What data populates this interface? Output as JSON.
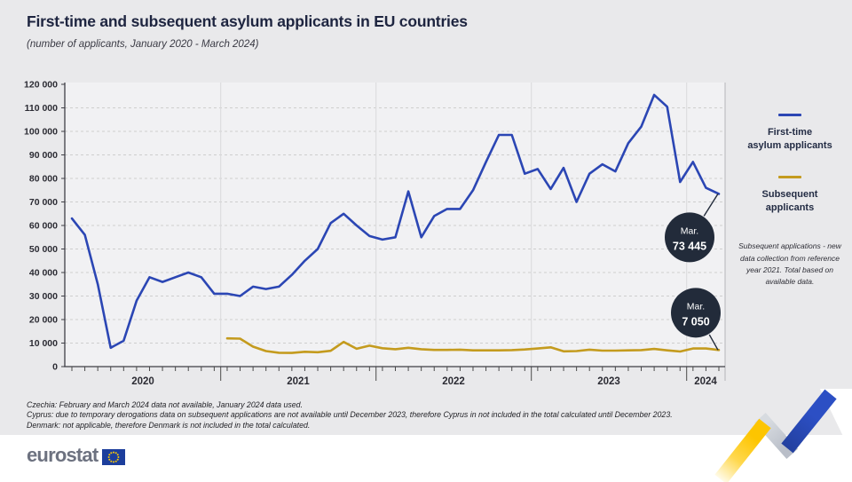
{
  "header": {
    "title": "First-time and subsequent asylum applicants in EU countries",
    "subtitle": "(number of applicants, January 2020 - March 2024)"
  },
  "legend": {
    "items": [
      {
        "line1": "First-time",
        "line2": "asylum applicants",
        "color": "#2b46b4"
      },
      {
        "line1": "Subsequent",
        "line2": "applicants",
        "color": "#c49b1e"
      }
    ],
    "note": "Subsequent applications - new data collection from reference year 2021. Total based on available data."
  },
  "footnotes": [
    "Czechia: February and March 2024 data not available, January 2024 data used.",
    "Cyprus: due to temporary derogations data on subsequent applications are not available until December 2023, therefore Cyprus in not included in the total calculated until December 2023.",
    "Denmark: not applicable, therefore Denmark is not included in the total calculated."
  ],
  "footer": {
    "logo_text": "eurostat"
  },
  "colors": {
    "background": "#e9e9eb",
    "plot_background": "#f1f1f3",
    "first_time_line": "#2b46b4",
    "subsequent_line": "#c49b1e",
    "callout_circle": "#222b3a",
    "footer_background": "#ffffff",
    "ribbon_yellow": "#fdc500",
    "ribbon_gray": "#c6cbd2",
    "ribbon_blue": "#2c4fc4",
    "eu_flag_blue": "#1c3e9c",
    "eu_flag_stars": "#ffcc00"
  },
  "chart_data": {
    "type": "line",
    "title": "First-time and subsequent asylum applicants in EU countries",
    "subtitle": "(number of applicants, January 2020 - March 2024)",
    "x_period": "January 2020 - March 2024",
    "grid": "horizontal-dashed",
    "legend_position": "right",
    "ylim": [
      0,
      120000
    ],
    "ytick_step": 10000,
    "ytick_labels": [
      "0",
      "10 000",
      "20 000",
      "30 000",
      "40 000",
      "50 000",
      "60 000",
      "70 000",
      "80 000",
      "90 000",
      "100 000",
      "110 000",
      "120 000"
    ],
    "year_labels": [
      "2020",
      "2021",
      "2022",
      "2023",
      "2024"
    ],
    "series": [
      {
        "name": "First-time asylum applicants",
        "color": "#2b46b4",
        "start": "2020-01",
        "offset_months": 0,
        "values": [
          63000,
          56000,
          35000,
          8000,
          11000,
          28000,
          38000,
          36000,
          38000,
          40000,
          38000,
          31000,
          31000,
          30000,
          34000,
          33000,
          34000,
          39000,
          45000,
          50000,
          61000,
          65000,
          60000,
          55500,
          54000,
          55000,
          74500,
          55000,
          64000,
          67000,
          67000,
          75000,
          87000,
          98500,
          98500,
          82000,
          84000,
          75500,
          84500,
          70000,
          82000,
          86000,
          83000,
          95000,
          102000,
          115500,
          110500,
          78500,
          87000,
          76000,
          73445
        ],
        "callout": {
          "month": "Mar.",
          "value": "73 445"
        }
      },
      {
        "name": "Subsequent applicants",
        "color": "#c49b1e",
        "start": "2021-01",
        "offset_months": 12,
        "values": [
          12000,
          11900,
          8500,
          6600,
          5900,
          5800,
          6300,
          6100,
          6700,
          10500,
          7600,
          8900,
          7800,
          7400,
          8000,
          7400,
          7100,
          7100,
          7200,
          6900,
          6900,
          6900,
          7000,
          7300,
          7700,
          8200,
          6500,
          6600,
          7200,
          6800,
          6800,
          6900,
          7000,
          7500,
          6900,
          6400,
          7700,
          7700,
          7050
        ],
        "callout": {
          "month": "Mar.",
          "value": "7 050"
        }
      }
    ]
  }
}
